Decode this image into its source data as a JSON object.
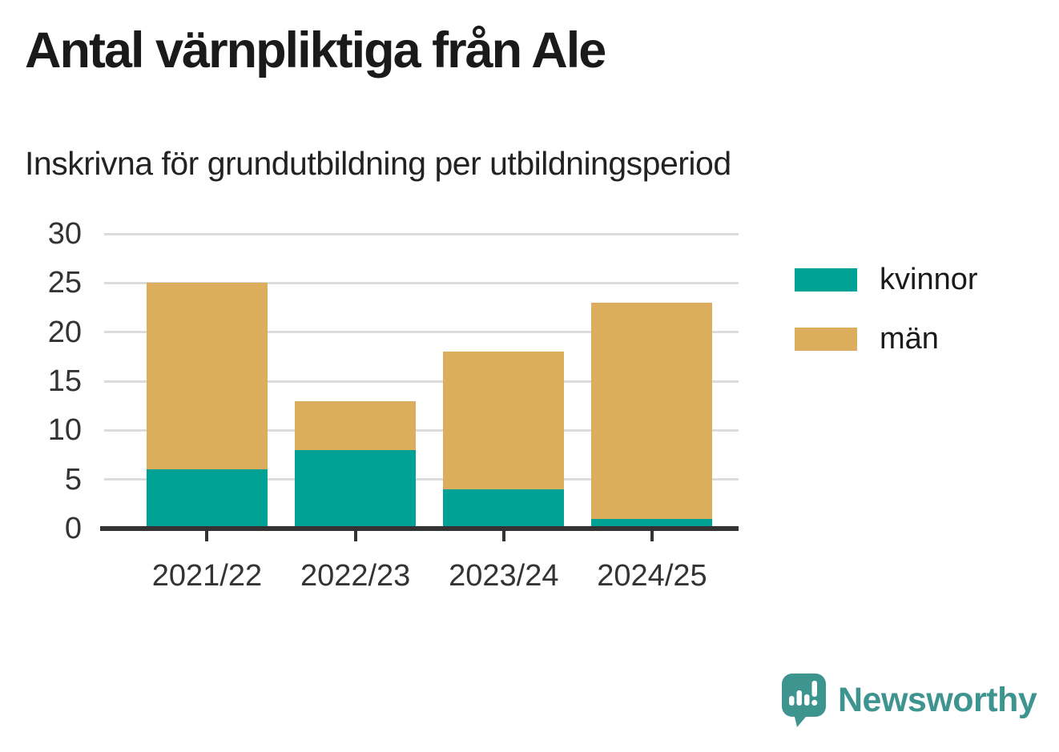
{
  "header": {
    "title": "Antal värnpliktiga från Ale",
    "subtitle": "Inskrivna för grundutbildning per utbildningsperiod"
  },
  "chart_data": {
    "type": "bar",
    "stacked": true,
    "categories": [
      "2021/22",
      "2022/23",
      "2023/24",
      "2024/25"
    ],
    "series": [
      {
        "name": "kvinnor",
        "color": "#00A296",
        "values": [
          6,
          8,
          4,
          1
        ]
      },
      {
        "name": "män",
        "color": "#DCAD5C",
        "values": [
          19,
          5,
          14,
          22
        ]
      }
    ],
    "totals": [
      25,
      13,
      18,
      23
    ],
    "yticks": [
      0,
      5,
      10,
      15,
      20,
      25,
      30
    ],
    "ylim": [
      0,
      30
    ],
    "xlabel": "",
    "ylabel": "",
    "grid": true,
    "legend_position": "right"
  },
  "footer": {
    "brand": "Newsworthy"
  },
  "colors": {
    "kvinnor": "#00A296",
    "man": "#DCAD5C",
    "brand_teal": "#3E948F",
    "axis_text": "#333333",
    "gridline": "#DCDCDC",
    "axis_line": "#333333",
    "title_text": "#1A1A1A"
  }
}
